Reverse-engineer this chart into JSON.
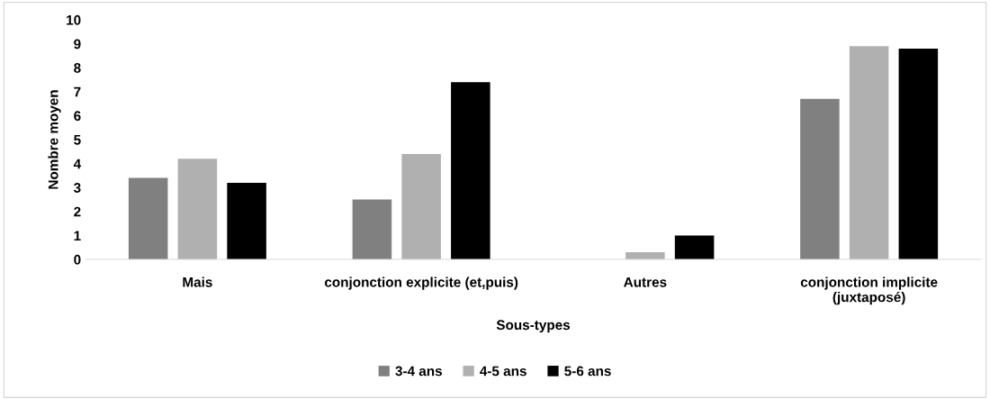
{
  "chart_data": {
    "type": "bar",
    "xlabel": "Sous-types",
    "ylabel": "Nombre moyen",
    "categories": [
      "Mais",
      "conjonction explicite (et,puis)",
      "Autres",
      "conjonction implicite\n(juxtaposé)"
    ],
    "series": [
      {
        "name": "3-4 ans",
        "color": "#808080",
        "values": [
          3.4,
          2.5,
          0,
          6.7
        ]
      },
      {
        "name": "4-5 ans",
        "color": "#b0b0b0",
        "values": [
          4.2,
          4.4,
          0.3,
          8.9
        ]
      },
      {
        "name": "5-6 ans",
        "color": "#000000",
        "values": [
          3.2,
          7.4,
          1.0,
          8.8
        ]
      }
    ],
    "ylim": [
      0,
      10
    ],
    "yticks": [
      0,
      1,
      2,
      3,
      4,
      5,
      6,
      7,
      8,
      9,
      10
    ],
    "grid": false,
    "legend": "bottom"
  }
}
